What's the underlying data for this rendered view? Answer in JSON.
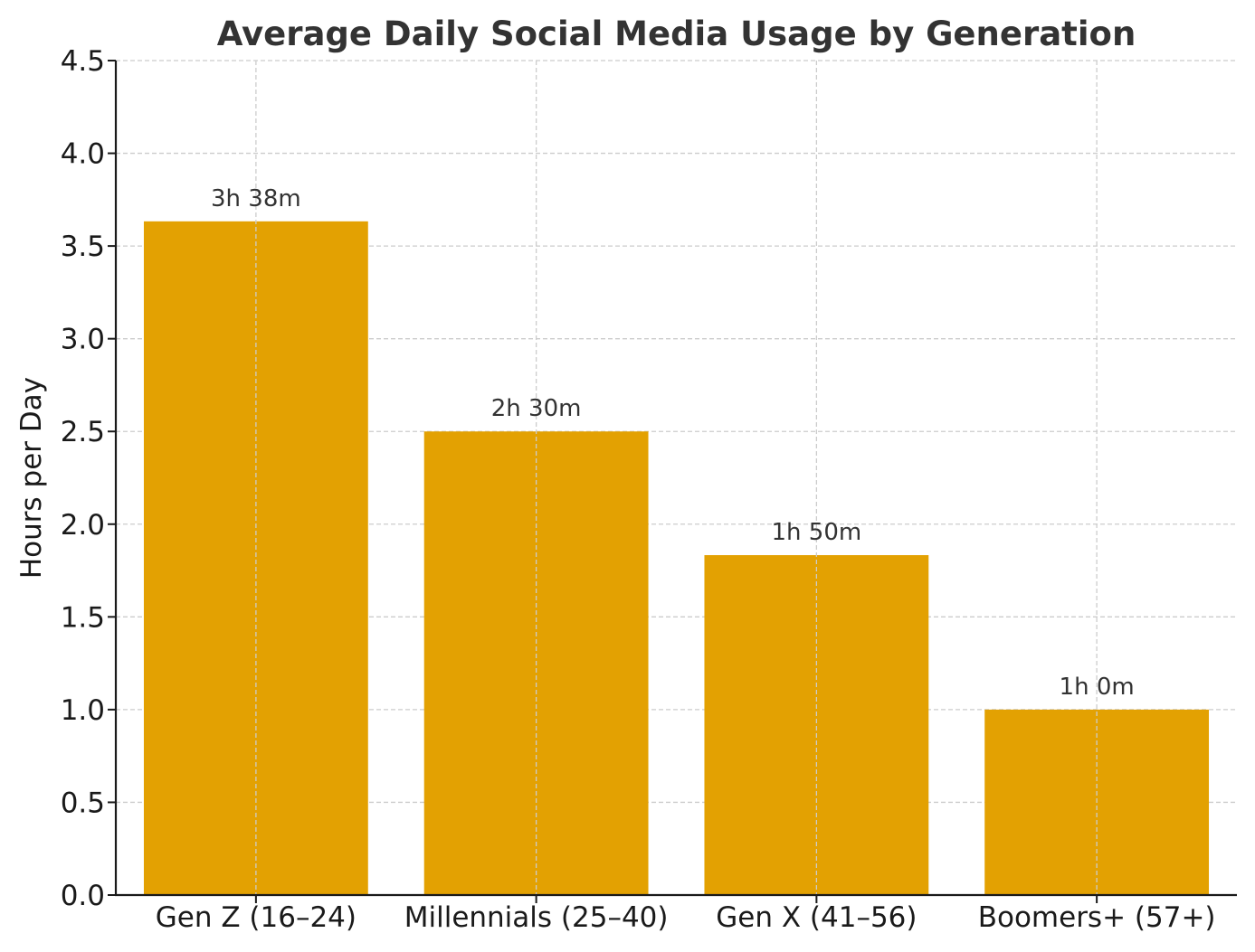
{
  "chart_data": {
    "type": "bar",
    "title": "Average Daily Social Media Usage by Generation",
    "xlabel": "",
    "ylabel": "Hours per Day",
    "categories": [
      "Gen Z (16–24)",
      "Millennials (25–40)",
      "Gen X (41–56)",
      "Boomers+ (57+)"
    ],
    "values": [
      3.633,
      2.5,
      1.833,
      1.0
    ],
    "data_labels": [
      "3h 38m",
      "2h 30m",
      "1h 50m",
      "1h 0m"
    ],
    "ylim": [
      0,
      4.5
    ],
    "yticks": [
      0.0,
      0.5,
      1.0,
      1.5,
      2.0,
      2.5,
      3.0,
      3.5,
      4.0,
      4.5
    ],
    "ytick_labels": [
      "0.0",
      "0.5",
      "1.0",
      "1.5",
      "2.0",
      "2.5",
      "3.0",
      "3.5",
      "4.0",
      "4.5"
    ],
    "grid": true,
    "bar_color": "#E3A102"
  }
}
